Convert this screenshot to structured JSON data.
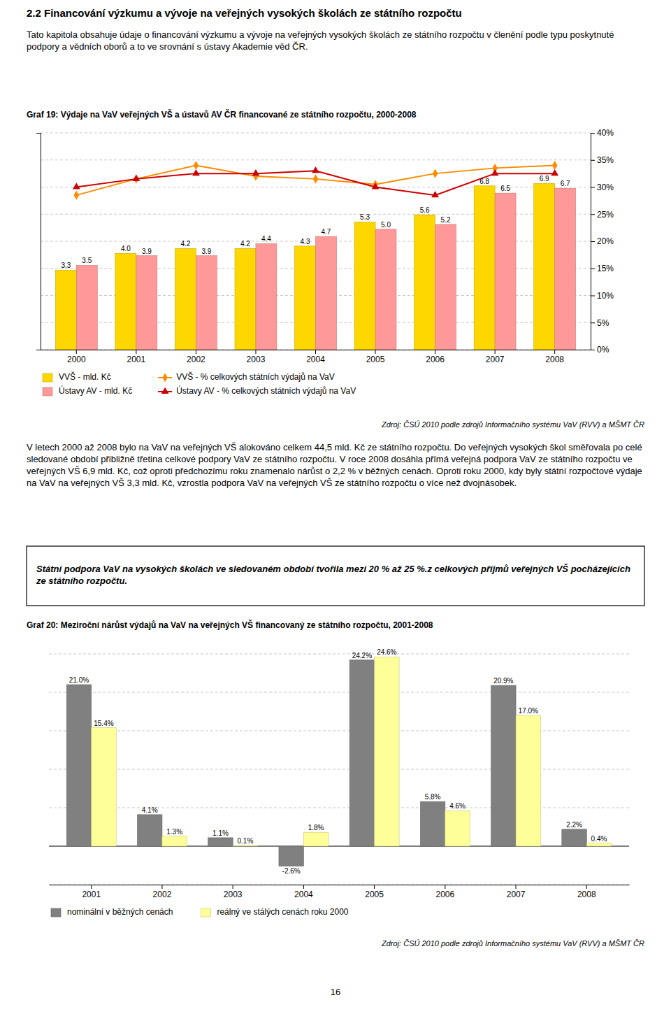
{
  "title": "2.2 Financování výzkumu a vývoje na veřejných vysokých školách ze státního rozpočtu",
  "paragraphs": [
    "Tato kapitola obsahuje údaje o financování výzkumu a vývoje na veřejných vysokých školách ze státního rozpočtu v členění podle typu poskytnuté podpory a vědních oborů a to ve srovnání s ústavy Akademie věd ČR.",
    "V letech 2000 až 2008 bylo na VaV na veřejných VŠ alokováno celkem 44,5 mld. Kč ze státního rozpočtu. Do veřejných vysokých škol směřovala po celé sledované období přibližně třetina celkové podpory VaV ze státního rozpočtu. V roce 2008 dosáhla přímá veřejná podpora VaV ze státního rozpočtu ve veřejných VŠ 6,9 mld. Kč, což oproti předchozímu roku znamenalo nárůst o 2,2 % v běžných cenách. Oproti roku 2000, kdy byly státní rozpočtové výdaje na VaV na veřejných VŠ 3,3 mld. Kč, vzrostla podpora VaV na veřejných VŠ ze státního rozpočtu o více než dvojnásobek."
  ],
  "highlight": "Státní podpora VaV na vysokých školách ve sledovaném období tvořila mezi 20 % až 25 %.z celkových příjmů veřejných VŠ pocházejících ze státního rozpočtu.",
  "page_number": "16",
  "chart_data": [
    {
      "type": "bar",
      "title": "Graf 19: Výdaje na VaV veřejných VŠ a ústavů AV ČR financované ze státního rozpočtu, 2000-2008",
      "categories": [
        "2000",
        "2001",
        "2002",
        "2003",
        "2004",
        "2005",
        "2006",
        "2007",
        "2008"
      ],
      "series": [
        {
          "name": "VVŠ - mld. Kč",
          "type": "bar",
          "color": "#FFD700",
          "values": [
            3.3,
            4.0,
            4.2,
            4.2,
            4.3,
            5.3,
            5.6,
            6.8,
            6.9
          ],
          "value_labels": [
            "3.3",
            "4.0",
            "4.2",
            "4.2",
            "4.3",
            "5.3",
            "5.6",
            "6.8",
            "6.9"
          ],
          "data_labels": true
        },
        {
          "name": "Ústavy AV - mld. Kč",
          "type": "bar",
          "color": "#FF9999",
          "values": [
            3.5,
            3.9,
            3.9,
            4.4,
            4.7,
            5.0,
            5.2,
            6.5,
            6.7
          ],
          "value_labels": [
            "3.5",
            "3.9",
            "3.9",
            "4.4",
            "4.7",
            "5.0",
            "5.2",
            "6.5",
            "6.7"
          ],
          "data_labels": true
        },
        {
          "name": "VVŠ - % celkových státních výdajů na VaV",
          "type": "line",
          "axis": "y2",
          "color": "#FF8C00",
          "marker": "diamond",
          "values": [
            28.5,
            31.5,
            34.0,
            32.0,
            31.5,
            30.5,
            32.5,
            33.5,
            34.0
          ]
        },
        {
          "name": "Ústavy AV - % celkových státních výdajů na VaV",
          "type": "line",
          "axis": "y2",
          "color": "#CC0000",
          "marker": "triangle",
          "values": [
            30.0,
            31.5,
            32.5,
            32.5,
            33.0,
            30.0,
            28.5,
            32.5,
            32.5
          ]
        }
      ],
      "ylim": [
        0,
        9
      ],
      "y2lim": [
        0,
        40
      ],
      "y2ticks": [
        {
          "value": 0,
          "label": "0%"
        },
        {
          "value": 5,
          "label": "5%"
        },
        {
          "value": 10,
          "label": "10%"
        },
        {
          "value": 15,
          "label": "15%"
        },
        {
          "value": 20,
          "label": "20%"
        },
        {
          "value": 25,
          "label": "25%"
        },
        {
          "value": 30,
          "label": "30%"
        },
        {
          "value": 35,
          "label": "35%"
        },
        {
          "value": 40,
          "label": "40%"
        }
      ],
      "grid": true,
      "legend": "bottom",
      "source": "Zdroj: ČSÚ 2010 podle zdrojů Informačního systému VaV (RVV) a MŠMT ČR"
    },
    {
      "type": "bar",
      "title": "Graf 20: Meziroční nárůst výdajů na VaV na veřejných VŠ financovaný ze státního rozpočtu, 2001-2008",
      "categories": [
        "2001",
        "2002",
        "2003",
        "2004",
        "2005",
        "2006",
        "2007",
        "2008"
      ],
      "series": [
        {
          "name": "nominální v běžných cenách",
          "color": "#808080",
          "values": [
            21.0,
            4.1,
            1.1,
            -2.6,
            24.2,
            5.8,
            20.9,
            2.2
          ],
          "value_labels": [
            "21.0%",
            "4.1%",
            "1.1%",
            "-2.6%",
            "24.2%",
            "5.8%",
            "20.9%",
            "2.2%"
          ],
          "data_labels": true
        },
        {
          "name": "reálný ve stálých cenách roku 2000",
          "color": "#FFFF99",
          "values": [
            15.4,
            1.3,
            0.1,
            1.8,
            24.6,
            4.6,
            17.0,
            0.4
          ],
          "value_labels": [
            "15.4%",
            "1.3%",
            "0.1%",
            "1.8%",
            "24.6%",
            "4.6%",
            "17.0%",
            "0.4%"
          ],
          "data_labels": true
        }
      ],
      "ylim": [
        -5,
        25
      ],
      "yticks": [
        -5,
        0,
        5,
        10,
        15,
        20,
        25
      ],
      "grid": true,
      "tick_labels": "x",
      "legend": "bottom",
      "source": "Zdroj: ČSÚ 2010 podle zdrojů Informačního systému VaV (RVV) a MŠMT ČR"
    }
  ]
}
